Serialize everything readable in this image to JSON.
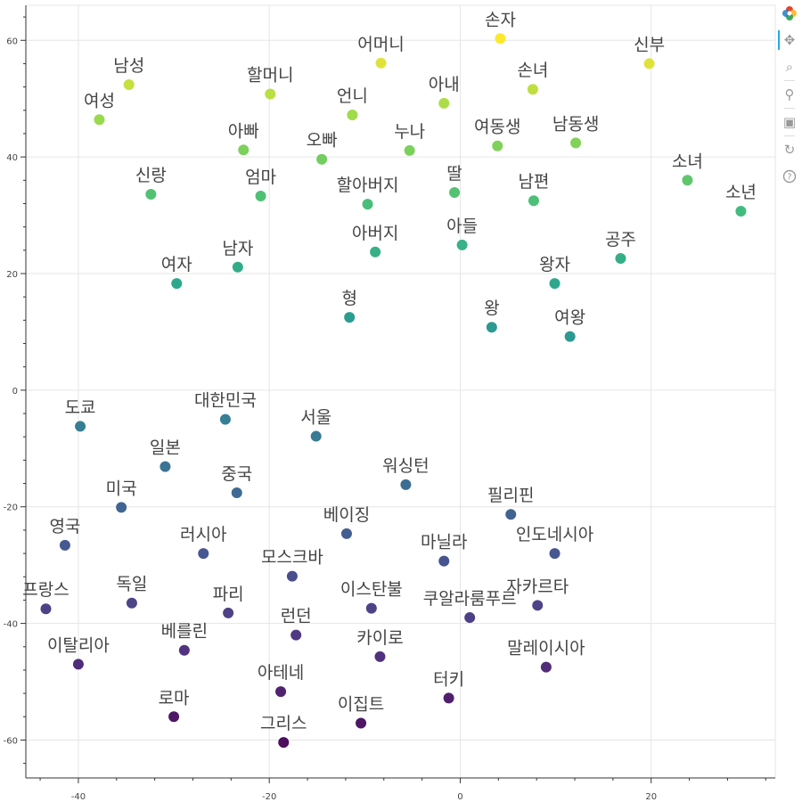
{
  "toolbar": {
    "tools": [
      {
        "name": "bokeh-logo-icon",
        "glyph": ""
      },
      {
        "name": "pan-icon",
        "glyph": "✥"
      },
      {
        "name": "box-zoom-icon",
        "glyph": "⌕"
      },
      {
        "name": "wheel-zoom-icon",
        "glyph": "⚲"
      },
      {
        "name": "save-icon",
        "glyph": "▣"
      },
      {
        "name": "reset-icon",
        "glyph": "↻"
      },
      {
        "name": "help-icon",
        "glyph": "?"
      }
    ]
  },
  "chart_data": {
    "type": "scatter",
    "title": "",
    "xlabel": "",
    "ylabel": "",
    "xlim": [
      -45.5,
      33
    ],
    "ylim": [
      -66.5,
      66
    ],
    "x_ticks": [
      -40,
      -20,
      0,
      20
    ],
    "y_ticks": [
      -60,
      -40,
      -20,
      0,
      20,
      40,
      60
    ],
    "grid": true,
    "colormap": "viridis",
    "points": [
      {
        "label": "손자",
        "x": 4.2,
        "y": 60.3
      },
      {
        "label": "어머니",
        "x": -8.3,
        "y": 56.1
      },
      {
        "label": "신부",
        "x": 19.8,
        "y": 56.0
      },
      {
        "label": "남성",
        "x": -34.7,
        "y": 52.4
      },
      {
        "label": "손녀",
        "x": 7.6,
        "y": 51.6
      },
      {
        "label": "할머니",
        "x": -19.9,
        "y": 50.8
      },
      {
        "label": "아내",
        "x": -1.7,
        "y": 49.2
      },
      {
        "label": "여성",
        "x": -37.8,
        "y": 46.4
      },
      {
        "label": "언니",
        "x": -11.3,
        "y": 47.2
      },
      {
        "label": "여동생",
        "x": 3.9,
        "y": 41.9
      },
      {
        "label": "남동생",
        "x": 12.1,
        "y": 42.4
      },
      {
        "label": "아빠",
        "x": -22.7,
        "y": 41.2
      },
      {
        "label": "누나",
        "x": -5.3,
        "y": 41.1
      },
      {
        "label": "오빠",
        "x": -14.5,
        "y": 39.6
      },
      {
        "label": "소녀",
        "x": 23.8,
        "y": 36.0
      },
      {
        "label": "딸",
        "x": -0.6,
        "y": 33.9
      },
      {
        "label": "할아버지",
        "x": -9.7,
        "y": 31.9
      },
      {
        "label": "남편",
        "x": 7.7,
        "y": 32.5
      },
      {
        "label": "신랑",
        "x": -32.4,
        "y": 33.6
      },
      {
        "label": "엄마",
        "x": -20.9,
        "y": 33.3
      },
      {
        "label": "소년",
        "x": 29.4,
        "y": 30.7
      },
      {
        "label": "아들",
        "x": 0.2,
        "y": 24.9
      },
      {
        "label": "아버지",
        "x": -8.9,
        "y": 23.7
      },
      {
        "label": "공주",
        "x": 16.8,
        "y": 22.6
      },
      {
        "label": "남자",
        "x": -23.3,
        "y": 21.1
      },
      {
        "label": "여자",
        "x": -29.7,
        "y": 18.3
      },
      {
        "label": "왕자",
        "x": 9.9,
        "y": 18.3
      },
      {
        "label": "형",
        "x": -11.6,
        "y": 12.5
      },
      {
        "label": "왕",
        "x": 3.3,
        "y": 10.8
      },
      {
        "label": "여왕",
        "x": 11.5,
        "y": 9.2
      },
      {
        "label": "대한민국",
        "x": -24.6,
        "y": -5.0
      },
      {
        "label": "도쿄",
        "x": -39.8,
        "y": -6.2
      },
      {
        "label": "서울",
        "x": -15.1,
        "y": -7.9
      },
      {
        "label": "일본",
        "x": -30.9,
        "y": -13.1
      },
      {
        "label": "워싱턴",
        "x": -5.7,
        "y": -16.2
      },
      {
        "label": "중국",
        "x": -23.4,
        "y": -17.6
      },
      {
        "label": "미국",
        "x": -35.5,
        "y": -20.1
      },
      {
        "label": "필리핀",
        "x": 5.3,
        "y": -21.3
      },
      {
        "label": "베이징",
        "x": -11.9,
        "y": -24.6
      },
      {
        "label": "영국",
        "x": -41.4,
        "y": -26.6
      },
      {
        "label": "러시아",
        "x": -26.9,
        "y": -28.0
      },
      {
        "label": "인도네시아",
        "x": 9.9,
        "y": -28.0
      },
      {
        "label": "마닐라",
        "x": -1.7,
        "y": -29.3
      },
      {
        "label": "모스크바",
        "x": -17.6,
        "y": -31.9
      },
      {
        "label": "프랑스",
        "x": -43.4,
        "y": -37.5
      },
      {
        "label": "독일",
        "x": -34.4,
        "y": -36.5
      },
      {
        "label": "이스탄불",
        "x": -9.3,
        "y": -37.4
      },
      {
        "label": "자카르타",
        "x": 8.1,
        "y": -36.9
      },
      {
        "label": "파리",
        "x": -24.3,
        "y": -38.2
      },
      {
        "label": "쿠알라룸푸르",
        "x": 1.0,
        "y": -39.0
      },
      {
        "label": "런던",
        "x": -17.2,
        "y": -42.0
      },
      {
        "label": "베를린",
        "x": -28.9,
        "y": -44.6
      },
      {
        "label": "카이로",
        "x": -8.4,
        "y": -45.7
      },
      {
        "label": "이탈리아",
        "x": -40.0,
        "y": -47.0
      },
      {
        "label": "말레이시아",
        "x": 9.0,
        "y": -47.5
      },
      {
        "label": "아테네",
        "x": -18.8,
        "y": -51.7
      },
      {
        "label": "터키",
        "x": -1.2,
        "y": -52.8
      },
      {
        "label": "로마",
        "x": -30.0,
        "y": -56.0
      },
      {
        "label": "이집트",
        "x": -10.4,
        "y": -57.1
      },
      {
        "label": "그리스",
        "x": -18.5,
        "y": -60.4
      }
    ]
  }
}
